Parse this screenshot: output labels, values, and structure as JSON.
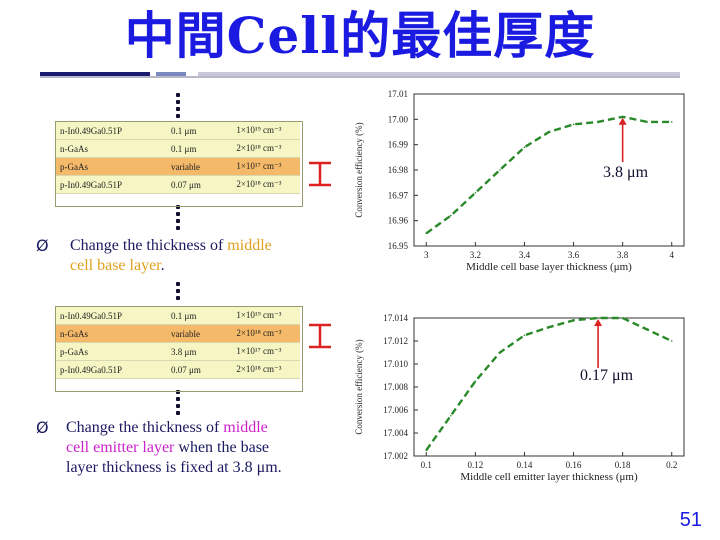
{
  "slide": {
    "title": "中間Cell的最佳厚度",
    "page_number": "51",
    "colors": {
      "title": "#1a1ae0",
      "curve": "#2a8a2a",
      "arrow": "#dd2222",
      "marker": "#dd2222",
      "highlight_yellow": "#e0a020",
      "highlight_magenta": "#cc22cc"
    }
  },
  "table1": {
    "rows": [
      {
        "layer": "n-In0.49Ga0.51P",
        "thickness": "0.1 μm",
        "doping": "1×10¹⁹ cm⁻³"
      },
      {
        "layer": "n-GaAs",
        "thickness": "0.1 μm",
        "doping": "2×10¹⁸ cm⁻³"
      },
      {
        "layer": "p-GaAs",
        "thickness": "variable",
        "doping": "1×10¹⁷ cm⁻³"
      },
      {
        "layer": "p-In0.49Ga0.51P",
        "thickness": "0.07 μm",
        "doping": "2×10¹⁸ cm⁻³"
      }
    ]
  },
  "table2": {
    "rows": [
      {
        "layer": "n-In0.49Ga0.51P",
        "thickness": "0.1 μm",
        "doping": "1×10¹⁹ cm⁻³"
      },
      {
        "layer": "n-GaAs",
        "thickness": "variable",
        "doping": "2×10¹⁸ cm⁻³"
      },
      {
        "layer": "p-GaAs",
        "thickness": "3.8 μm",
        "doping": "1×10¹⁷ cm⁻³"
      },
      {
        "layer": "p-In0.49Ga0.51P",
        "thickness": "0.07 μm",
        "doping": "2×10¹⁸ cm⁻³"
      }
    ]
  },
  "bullet1": {
    "marker": "Ø",
    "pre": "Change the thickness of ",
    "hl": "middle",
    "line2_hl": "cell base layer",
    "post": "."
  },
  "bullet2": {
    "marker": "Ø",
    "pre": "Change the thickness of ",
    "hl": "middle",
    "line2_hl": "cell emitter layer",
    "line2_post": " when the base",
    "line3": "layer thickness is fixed at 3.8 μm."
  },
  "annotation1": "3.8 μm",
  "annotation2": "0.17 μm",
  "chart_data": [
    {
      "type": "line",
      "xlabel": "Middle cell base layer thickness (μm)",
      "ylabel": "Conversion efficiency (%)",
      "x_ticks": [
        "3",
        "3.2",
        "3.4",
        "3.6",
        "3.8",
        "4"
      ],
      "y_ticks": [
        "16.95",
        "16.96",
        "16.97",
        "16.98",
        "16.99",
        "17.00",
        "17.01"
      ],
      "xlim": [
        2.95,
        4.05
      ],
      "ylim": [
        16.95,
        17.01
      ],
      "series": [
        {
          "x": [
            3.0,
            3.1,
            3.2,
            3.3,
            3.4,
            3.5,
            3.6,
            3.7,
            3.8,
            3.9,
            4.0
          ],
          "values": [
            16.955,
            16.962,
            16.971,
            16.98,
            16.989,
            16.995,
            16.998,
            16.999,
            17.001,
            16.999,
            16.999
          ]
        }
      ]
    },
    {
      "type": "line",
      "xlabel": "Middle cell emitter layer thickness (μm)",
      "ylabel": "Conversion efficiency (%)",
      "x_ticks": [
        "0.1",
        "0.12",
        "0.14",
        "0.16",
        "0.18",
        "0.2"
      ],
      "y_ticks": [
        "17.002",
        "17.004",
        "17.006",
        "17.008",
        "17.010",
        "17.012",
        "17.014"
      ],
      "xlim": [
        0.095,
        0.205
      ],
      "ylim": [
        17.002,
        17.014
      ],
      "series": [
        {
          "x": [
            0.1,
            0.11,
            0.12,
            0.13,
            0.14,
            0.15,
            0.16,
            0.17,
            0.18,
            0.19,
            0.2
          ],
          "values": [
            17.0025,
            17.0055,
            17.0085,
            17.011,
            17.0125,
            17.0132,
            17.0138,
            17.014,
            17.014,
            17.013,
            17.012
          ]
        }
      ]
    }
  ]
}
